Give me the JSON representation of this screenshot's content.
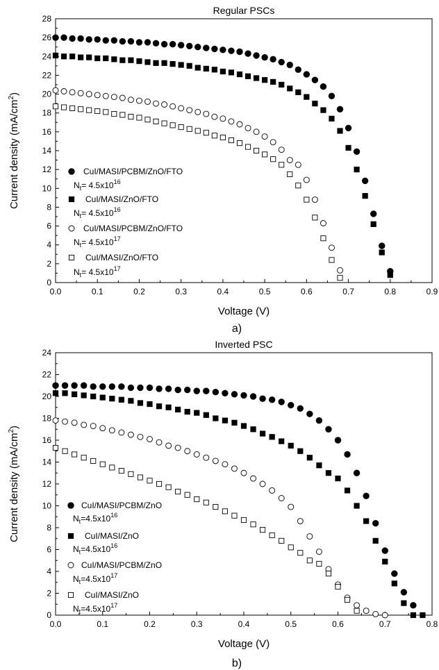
{
  "chart_data": [
    {
      "type": "scatter",
      "panel_label": "a)",
      "title": "Regular PSCs",
      "xlabel": "Voltage (V)",
      "ylabel_main": "Current density (mA/cm",
      "ylabel_sup": "2",
      "ylabel_close": ")",
      "xlim": [
        0,
        0.9
      ],
      "ylim": [
        0,
        28
      ],
      "xticks": [
        "0.0",
        "0.1",
        "0.2",
        "0.3",
        "0.4",
        "0.5",
        "0.6",
        "0.7",
        "0.8",
        "0.9"
      ],
      "yticks": [
        "0",
        "2",
        "4",
        "6",
        "8",
        "10",
        "12",
        "14",
        "16",
        "18",
        "20",
        "22",
        "24",
        "26",
        "28"
      ],
      "legend_position": "lower-left",
      "series": [
        {
          "name": "CuI/MASI/PCBM/ZnO/FTO",
          "nt_base": "4.5x10",
          "nt_exp": "16",
          "marker": "circle-filled",
          "x": [
            0.0,
            0.02,
            0.04,
            0.06,
            0.08,
            0.1,
            0.12,
            0.14,
            0.16,
            0.18,
            0.2,
            0.22,
            0.24,
            0.26,
            0.28,
            0.3,
            0.32,
            0.34,
            0.36,
            0.38,
            0.4,
            0.42,
            0.44,
            0.46,
            0.48,
            0.5,
            0.52,
            0.54,
            0.56,
            0.58,
            0.6,
            0.62,
            0.64,
            0.66,
            0.68,
            0.7,
            0.72,
            0.74,
            0.76,
            0.78,
            0.8
          ],
          "y": [
            26.0,
            26.0,
            25.9,
            25.9,
            25.8,
            25.8,
            25.7,
            25.7,
            25.6,
            25.6,
            25.5,
            25.5,
            25.4,
            25.3,
            25.3,
            25.2,
            25.1,
            25.0,
            24.9,
            24.8,
            24.7,
            24.6,
            24.5,
            24.3,
            24.1,
            23.9,
            23.7,
            23.4,
            23.1,
            22.6,
            22.1,
            21.5,
            20.8,
            19.8,
            18.4,
            16.4,
            13.9,
            10.8,
            7.3,
            3.9,
            1.2
          ]
        },
        {
          "name": "CuI/MASI/ZnO/FTO",
          "nt_base": "4.5x10",
          "nt_exp": "16",
          "marker": "square-filled",
          "x": [
            0.0,
            0.02,
            0.04,
            0.06,
            0.08,
            0.1,
            0.12,
            0.14,
            0.16,
            0.18,
            0.2,
            0.22,
            0.24,
            0.26,
            0.28,
            0.3,
            0.32,
            0.34,
            0.36,
            0.38,
            0.4,
            0.42,
            0.44,
            0.46,
            0.48,
            0.5,
            0.52,
            0.54,
            0.56,
            0.58,
            0.6,
            0.62,
            0.64,
            0.66,
            0.68,
            0.7,
            0.72,
            0.74,
            0.76,
            0.78,
            0.8
          ],
          "y": [
            24.1,
            24.0,
            24.0,
            23.9,
            23.9,
            23.8,
            23.8,
            23.7,
            23.6,
            23.6,
            23.5,
            23.4,
            23.3,
            23.3,
            23.2,
            23.1,
            23.0,
            22.8,
            22.7,
            22.6,
            22.4,
            22.3,
            22.1,
            21.9,
            21.7,
            21.5,
            21.3,
            21.0,
            20.6,
            20.2,
            19.7,
            19.0,
            18.3,
            17.4,
            16.1,
            14.3,
            12.0,
            9.2,
            6.2,
            3.2,
            0.8
          ]
        },
        {
          "name": "CuI/MASI/PCBM/ZnO/FTO",
          "nt_base": "4.5x10",
          "nt_exp": "17",
          "marker": "circle-open",
          "x": [
            0.0,
            0.02,
            0.04,
            0.06,
            0.08,
            0.1,
            0.12,
            0.14,
            0.16,
            0.18,
            0.2,
            0.22,
            0.24,
            0.26,
            0.28,
            0.3,
            0.32,
            0.34,
            0.36,
            0.38,
            0.4,
            0.42,
            0.44,
            0.46,
            0.48,
            0.5,
            0.52,
            0.54,
            0.56,
            0.58,
            0.6,
            0.62,
            0.64,
            0.66,
            0.68
          ],
          "y": [
            20.4,
            20.3,
            20.2,
            20.1,
            20.0,
            19.9,
            19.8,
            19.7,
            19.6,
            19.4,
            19.3,
            19.2,
            19.0,
            18.9,
            18.7,
            18.5,
            18.3,
            18.1,
            17.9,
            17.6,
            17.4,
            17.1,
            16.8,
            16.4,
            16.0,
            15.5,
            14.9,
            14.1,
            13.0,
            12.5,
            10.9,
            8.8,
            6.3,
            3.7,
            1.3
          ]
        },
        {
          "name": "CuI/MASI/ZnO/FTO",
          "nt_base": "4.5x10",
          "nt_exp": "17",
          "marker": "square-open",
          "x": [
            0.0,
            0.02,
            0.04,
            0.06,
            0.08,
            0.1,
            0.12,
            0.14,
            0.16,
            0.18,
            0.2,
            0.22,
            0.24,
            0.26,
            0.28,
            0.3,
            0.32,
            0.34,
            0.36,
            0.38,
            0.4,
            0.42,
            0.44,
            0.46,
            0.48,
            0.5,
            0.52,
            0.54,
            0.56,
            0.58,
            0.6,
            0.62,
            0.64,
            0.66,
            0.68
          ],
          "y": [
            18.7,
            18.6,
            18.5,
            18.4,
            18.3,
            18.2,
            18.1,
            17.9,
            17.8,
            17.6,
            17.5,
            17.3,
            17.1,
            16.9,
            16.7,
            16.5,
            16.3,
            16.1,
            15.9,
            15.6,
            15.4,
            15.1,
            14.8,
            14.4,
            14.0,
            13.6,
            13.1,
            12.5,
            11.5,
            10.3,
            8.8,
            6.9,
            4.7,
            2.4,
            0.5
          ]
        }
      ]
    },
    {
      "type": "scatter",
      "panel_label": "b)",
      "title": "Inverted PSC",
      "xlabel": "Voltage (V)",
      "ylabel_main": "Current density (mA/cm",
      "ylabel_sup": "2",
      "ylabel_close": ")",
      "xlim": [
        0,
        0.8
      ],
      "ylim": [
        0,
        24
      ],
      "xticks": [
        "0.0",
        "0.1",
        "0.2",
        "0.3",
        "0.4",
        "0.5",
        "0.6",
        "0.7",
        "0.8"
      ],
      "yticks": [
        "0",
        "2",
        "4",
        "6",
        "8",
        "10",
        "12",
        "14",
        "16",
        "18",
        "20",
        "22",
        "24"
      ],
      "legend_position": "lower-left",
      "series": [
        {
          "name": "CuI/MASI/PCBM/ZnO",
          "nt_base": "4.5x10",
          "nt_exp": "16",
          "marker": "circle-filled",
          "x": [
            0.0,
            0.02,
            0.04,
            0.06,
            0.08,
            0.1,
            0.12,
            0.14,
            0.16,
            0.18,
            0.2,
            0.22,
            0.24,
            0.26,
            0.28,
            0.3,
            0.32,
            0.34,
            0.36,
            0.38,
            0.4,
            0.42,
            0.44,
            0.46,
            0.48,
            0.5,
            0.52,
            0.54,
            0.56,
            0.58,
            0.6,
            0.62,
            0.64,
            0.66,
            0.68,
            0.7,
            0.72,
            0.74,
            0.76
          ],
          "y": [
            21.0,
            21.0,
            21.0,
            21.0,
            20.9,
            20.9,
            20.9,
            20.9,
            20.8,
            20.8,
            20.8,
            20.7,
            20.7,
            20.6,
            20.6,
            20.5,
            20.5,
            20.4,
            20.3,
            20.2,
            20.1,
            20.0,
            19.8,
            19.7,
            19.5,
            19.2,
            18.9,
            18.4,
            17.8,
            17.0,
            16.0,
            14.7,
            13.0,
            10.9,
            8.4,
            5.9,
            3.8,
            2.1,
            0.9
          ]
        },
        {
          "name": "CuI/MASI/ZnO",
          "nt_base": "4.5x10",
          "nt_exp": "16",
          "marker": "square-filled",
          "x": [
            0.0,
            0.02,
            0.04,
            0.06,
            0.08,
            0.1,
            0.12,
            0.14,
            0.16,
            0.18,
            0.2,
            0.22,
            0.24,
            0.26,
            0.28,
            0.3,
            0.32,
            0.34,
            0.36,
            0.38,
            0.4,
            0.42,
            0.44,
            0.46,
            0.48,
            0.5,
            0.52,
            0.54,
            0.56,
            0.58,
            0.6,
            0.62,
            0.64,
            0.66,
            0.68,
            0.7,
            0.72,
            0.74,
            0.76,
            0.78
          ],
          "y": [
            20.3,
            20.3,
            20.2,
            20.1,
            20.0,
            19.9,
            19.8,
            19.7,
            19.6,
            19.4,
            19.3,
            19.1,
            19.0,
            18.8,
            18.6,
            18.5,
            18.3,
            18.0,
            17.8,
            17.6,
            17.3,
            17.0,
            16.6,
            16.3,
            15.9,
            15.5,
            15.0,
            14.4,
            13.7,
            13.0,
            12.5,
            11.4,
            10.0,
            8.6,
            6.8,
            4.9,
            2.9,
            1.1,
            0.0,
            0.0
          ]
        },
        {
          "name": "CuI/MASI/PCBM/ZnO",
          "nt_base": "4.5x10",
          "nt_exp": "17",
          "marker": "circle-open",
          "x": [
            0.0,
            0.02,
            0.04,
            0.06,
            0.08,
            0.1,
            0.12,
            0.14,
            0.16,
            0.18,
            0.2,
            0.22,
            0.24,
            0.26,
            0.28,
            0.3,
            0.32,
            0.34,
            0.36,
            0.38,
            0.4,
            0.42,
            0.44,
            0.46,
            0.48,
            0.5,
            0.52,
            0.54,
            0.56,
            0.58,
            0.6,
            0.62,
            0.64,
            0.66,
            0.68,
            0.7
          ],
          "y": [
            17.8,
            17.7,
            17.6,
            17.4,
            17.3,
            17.1,
            16.9,
            16.7,
            16.5,
            16.3,
            16.1,
            15.8,
            15.5,
            15.3,
            15.0,
            14.7,
            14.4,
            14.1,
            13.8,
            13.4,
            13.0,
            12.5,
            12.0,
            11.4,
            10.7,
            9.9,
            8.6,
            7.2,
            5.8,
            4.2,
            2.8,
            1.6,
            0.9,
            0.4,
            0.1,
            0.0
          ]
        },
        {
          "name": "CuI/MASI/ZnO",
          "nt_base": "4.5x10",
          "nt_exp": "17",
          "marker": "square-open",
          "x": [
            0.0,
            0.02,
            0.04,
            0.06,
            0.08,
            0.1,
            0.12,
            0.14,
            0.16,
            0.18,
            0.2,
            0.22,
            0.24,
            0.26,
            0.28,
            0.3,
            0.32,
            0.34,
            0.36,
            0.38,
            0.4,
            0.42,
            0.44,
            0.46,
            0.48,
            0.5,
            0.52,
            0.54,
            0.56,
            0.58,
            0.6,
            0.62,
            0.64
          ],
          "y": [
            15.3,
            15.0,
            14.7,
            14.4,
            14.1,
            13.8,
            13.5,
            13.2,
            12.9,
            12.6,
            12.3,
            12.0,
            11.7,
            11.3,
            11.0,
            10.6,
            10.3,
            9.9,
            9.5,
            9.1,
            8.7,
            8.3,
            7.8,
            7.3,
            6.8,
            6.2,
            5.7,
            5.0,
            4.7,
            3.8,
            2.6,
            1.4,
            0.4
          ]
        }
      ]
    }
  ]
}
